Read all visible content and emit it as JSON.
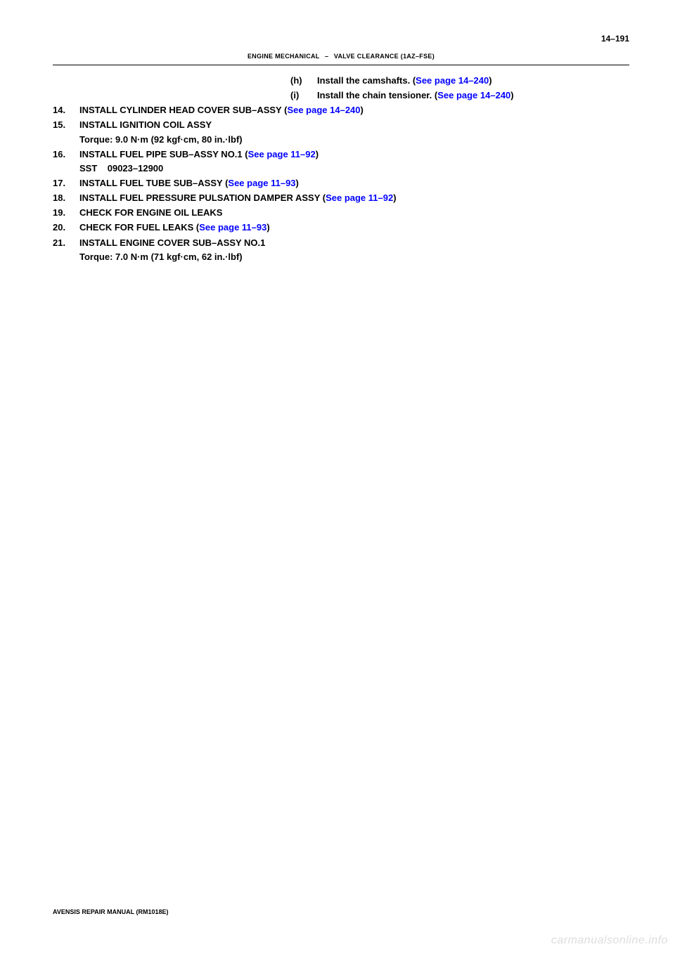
{
  "page_number": "14–191",
  "header": {
    "left": "ENGINE MECHANICAL",
    "separator": "–",
    "right": "VALVE CLEARANCE (1AZ–FSE)"
  },
  "sub_items": [
    {
      "letter": "(h)",
      "text": "Install the camshafts. (",
      "link": "See page 14–240",
      "after": ")"
    },
    {
      "letter": "(i)",
      "text": "Install the chain tensioner. (",
      "link": "See page 14–240",
      "after": ")"
    }
  ],
  "items": [
    {
      "num": "14.",
      "title": "INSTALL CYLINDER HEAD COVER SUB–ASSY (",
      "link": "See page 14–240",
      "after": ")"
    },
    {
      "num": "15.",
      "title": "INSTALL IGNITION COIL ASSY",
      "detail": "Torque: 9.0 N·m (92 kgf·cm, 80 in.·lbf)"
    },
    {
      "num": "16.",
      "title": "INSTALL FUEL PIPE SUB–ASSY NO.1 (",
      "link": "See page 11–92",
      "after": ")",
      "detail": "SST    09023–12900"
    },
    {
      "num": "17.",
      "title": "INSTALL FUEL TUBE SUB–ASSY (",
      "link": "See page 11–93",
      "after": ")"
    },
    {
      "num": "18.",
      "title": "INSTALL FUEL PRESSURE PULSATION DAMPER ASSY (",
      "link": "See page 11–92",
      "after": ")"
    },
    {
      "num": "19.",
      "title": "CHECK FOR ENGINE OIL LEAKS"
    },
    {
      "num": "20.",
      "title": "CHECK FOR FUEL LEAKS (",
      "link": "See page 11–93",
      "after": ")"
    },
    {
      "num": "21.",
      "title": "INSTALL ENGINE COVER SUB–ASSY NO.1",
      "detail": "Torque: 7.0 N·m (71 kgf·cm, 62 in.·lbf)"
    }
  ],
  "footer": "AVENSIS REPAIR MANUAL   (RM1018E)",
  "watermark": "carmanualsonline.info",
  "colors": {
    "background": "#ffffff",
    "text": "#000000",
    "link": "#0000ff",
    "watermark": "#dddddd",
    "border": "#000000"
  }
}
